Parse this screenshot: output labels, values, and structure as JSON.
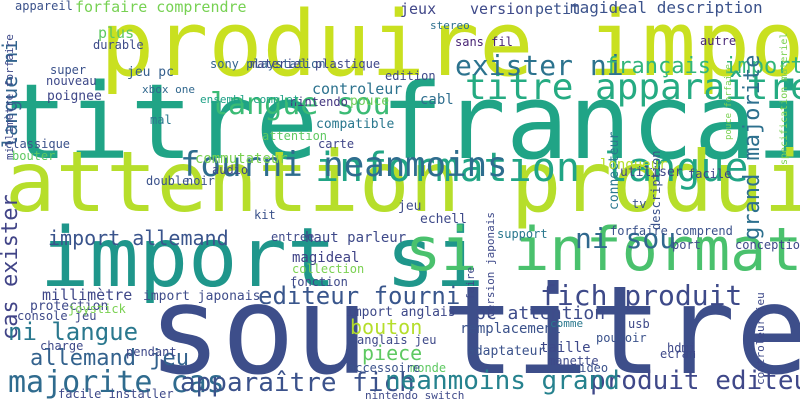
{
  "words": [
    {
      "text": "sou titre",
      "color": "#3d4e8a"
    },
    {
      "text": "titre francai",
      "color": "#20a486"
    },
    {
      "text": "attention produire",
      "color": "#b6de2b"
    },
    {
      "text": "produire import",
      "color": "#c9e020"
    },
    {
      "text": "import si",
      "color": "#1f968b"
    },
    {
      "text": "si information",
      "color": "#4ac16d"
    },
    {
      "text": "information langue",
      "color": "#21a585"
    },
    {
      "text": "titre apparaître",
      "color": "#25ab82"
    },
    {
      "text": "fourni neanmoins",
      "color": "#2e6d8e"
    },
    {
      "text": "langue sou",
      "color": "#3bbb75"
    },
    {
      "text": "exister ni",
      "color": "#2c738e"
    },
    {
      "text": "français import",
      "color": "#31b57b"
    },
    {
      "text": "ni sou",
      "color": "#30688e"
    },
    {
      "text": "fich produit",
      "color": "#3e4a89"
    },
    {
      "text": "editeur fourni",
      "color": "#39568c"
    },
    {
      "text": "produit editeur",
      "color": "#3f4889"
    },
    {
      "text": "majorite cas",
      "color": "#2f6b8e"
    },
    {
      "text": "apparaître fich",
      "color": "#3b528b"
    },
    {
      "text": "neanmoins grand",
      "color": "#26828e"
    },
    {
      "text": "grand majorite",
      "color": "#2d708e"
    },
    {
      "text": "cas exister",
      "color": "#414487"
    },
    {
      "text": "ni langue",
      "color": "#2a788e"
    },
    {
      "text": "allemand jeu",
      "color": "#33628d"
    },
    {
      "text": "import allemand",
      "color": "#3a548c"
    },
    {
      "text": "pc attention",
      "color": "#3e4c8a"
    },
    {
      "text": "bouton",
      "color": "#b5de2b"
    },
    {
      "text": "piece",
      "color": "#5ec962"
    },
    {
      "text": "langue ni",
      "color": "#32648e"
    },
    {
      "text": "millimètre",
      "color": "#3f4788"
    },
    {
      "text": "controleur",
      "color": "#2c728e"
    },
    {
      "text": "forfaire comprendre",
      "color": "#77d153"
    },
    {
      "text": "magideal description",
      "color": "#3b528b"
    },
    {
      "text": "sans fil",
      "color": "#482475"
    },
    {
      "text": "jeux",
      "color": "#404688"
    },
    {
      "text": "version",
      "color": "#3e4989"
    },
    {
      "text": "petit",
      "color": "#3b528b"
    },
    {
      "text": "appareil",
      "color": "#3b528b"
    },
    {
      "text": "sony playstation",
      "color": "#33638d"
    },
    {
      "text": "materiel plastique",
      "color": "#3f4788"
    },
    {
      "text": "jeu pc",
      "color": "#355f8d"
    },
    {
      "text": "plus",
      "color": "#5ec962"
    },
    {
      "text": "durable",
      "color": "#3e4c8a"
    },
    {
      "text": "poignee",
      "color": "#3f4788"
    },
    {
      "text": "super",
      "color": "#3b528b"
    },
    {
      "text": "nouveau",
      "color": "#3e4989"
    },
    {
      "text": "edition",
      "color": "#3e4989"
    },
    {
      "text": "stereo",
      "color": "#2d708e"
    },
    {
      "text": "autre",
      "color": "#482677"
    },
    {
      "text": "cabl",
      "color": "#2e6e8e"
    },
    {
      "text": "nintendo",
      "color": "#453781"
    },
    {
      "text": "pouce",
      "color": "#6ece58"
    },
    {
      "text": "xbox one",
      "color": "#31688e"
    },
    {
      "text": "ensembl complet",
      "color": "#1fa187"
    },
    {
      "text": "mal",
      "color": "#2a788e"
    },
    {
      "text": "connecteur",
      "color": "#2a788e"
    },
    {
      "text": "description",
      "color": "#3b528b"
    },
    {
      "text": "attention",
      "color": "#5ec962"
    },
    {
      "text": "carte",
      "color": "#404688"
    },
    {
      "text": "classique",
      "color": "#3b528b"
    },
    {
      "text": "bouter",
      "color": "#5ec962"
    },
    {
      "text": "compatible",
      "color": "#2a788e"
    },
    {
      "text": "commutateur",
      "color": "#7ad151"
    },
    {
      "text": "audio",
      "color": "#3e4989"
    },
    {
      "text": "double",
      "color": "#3b528b"
    },
    {
      "text": "noir",
      "color": "#3b528b"
    },
    {
      "text": "longueur",
      "color": "#b5de2b"
    },
    {
      "text": "utiliser",
      "color": "#3f4788"
    },
    {
      "text": "facile",
      "color": "#404688"
    },
    {
      "text": "jeu",
      "color": "#3e4c8a"
    },
    {
      "text": "echell",
      "color": "#3e4989"
    },
    {
      "text": "kit",
      "color": "#3b528b"
    },
    {
      "text": "tv",
      "color": "#3b528b"
    },
    {
      "text": "forfaire comprend",
      "color": "#3b528b"
    },
    {
      "text": "port",
      "color": "#3e4c8a"
    },
    {
      "text": "conception",
      "color": "#3e4989"
    },
    {
      "text": "support",
      "color": "#2a788e"
    },
    {
      "text": "haut parleur",
      "color": "#3e4989"
    },
    {
      "text": "entree",
      "color": "#3e4989"
    },
    {
      "text": "magideal",
      "color": "#414487"
    },
    {
      "text": "collection",
      "color": "#7ad151"
    },
    {
      "text": "fonction",
      "color": "#3e4989"
    },
    {
      "text": "import japonais",
      "color": "#3e4c8a"
    },
    {
      "text": "import anglais",
      "color": "#3e4989"
    },
    {
      "text": "anglais jeu",
      "color": "#3e4989"
    },
    {
      "text": "remplacement",
      "color": "#3b528b"
    },
    {
      "text": "adaptateur",
      "color": "#3b528b"
    },
    {
      "text": "comme",
      "color": "#2a788e"
    },
    {
      "text": "usb",
      "color": "#3e4989"
    },
    {
      "text": "pouvoir",
      "color": "#3b528b"
    },
    {
      "text": "taille",
      "color": "#3e4989"
    },
    {
      "text": "ecran",
      "color": "#3e4989"
    },
    {
      "text": "hdmi",
      "color": "#3e4989"
    },
    {
      "text": "video",
      "color": "#3b528b"
    },
    {
      "text": "manette",
      "color": "#3e4989"
    },
    {
      "text": "monde",
      "color": "#5ec962"
    },
    {
      "text": "accessoire",
      "color": "#3b528b"
    },
    {
      "text": "console jeu",
      "color": "#3e4989"
    },
    {
      "text": "protection",
      "color": "#3e4989"
    },
    {
      "text": "joystick",
      "color": "#7ad151"
    },
    {
      "text": "charge",
      "color": "#3e4989"
    },
    {
      "text": "pendant",
      "color": "#3e4989"
    },
    {
      "text": "facile installer",
      "color": "#3e4989"
    },
    {
      "text": "nintendo switch",
      "color": "#3e4989"
    },
    {
      "text": "controleur jeu",
      "color": "#3e4989"
    },
    {
      "text": "millimètre forfaire",
      "color": "#3e4989"
    },
    {
      "text": "faire",
      "color": "#3e4989"
    },
    {
      "text": "version japonais",
      "color": "#3e4989"
    },
    {
      "text": "specification materiel",
      "color": "#7ad151"
    },
    {
      "text": "pouce forfaire",
      "color": "#7ad151"
    }
  ]
}
